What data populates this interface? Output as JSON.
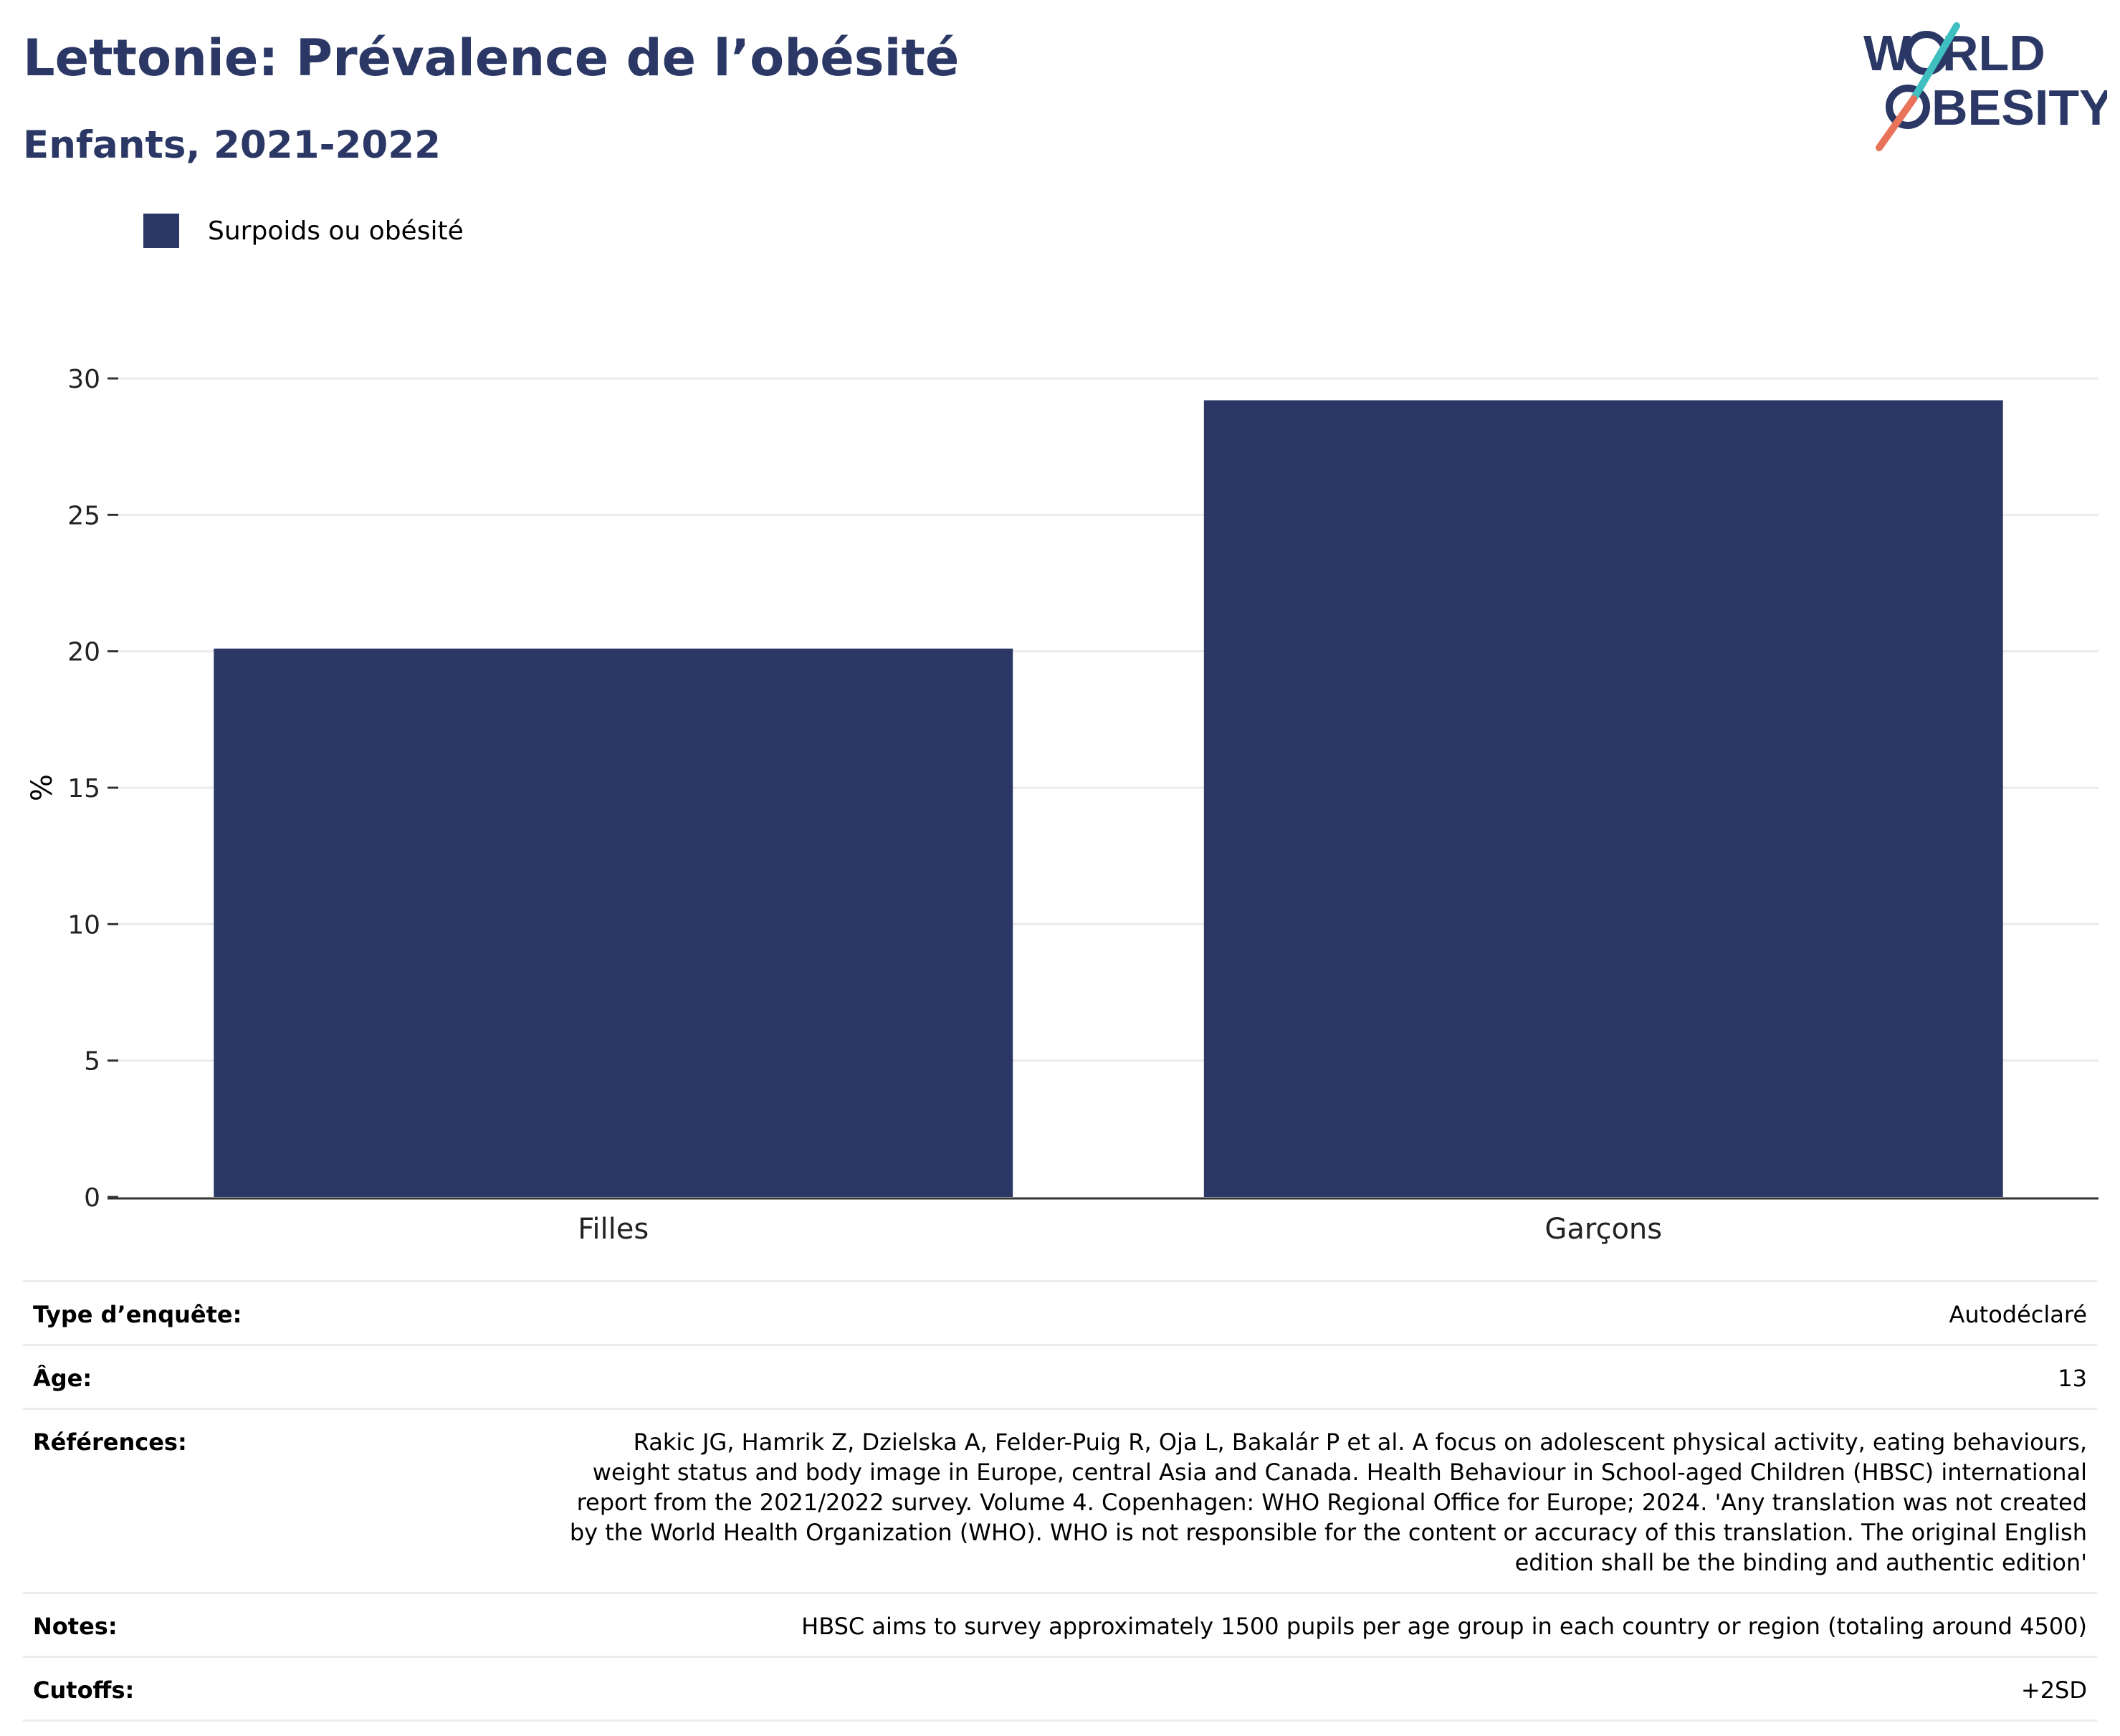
{
  "header": {
    "title": "Lettonie: Prévalence de l’obésité",
    "subtitle": "Enfants, 2021-2022"
  },
  "logo": {
    "line1": "W",
    "line1b": "RLD",
    "line2": "BESITY",
    "icon": "world-obesity-logo",
    "accent_teal": "#3fbfbf",
    "accent_coral": "#e8735a",
    "text_color": "#2b3764"
  },
  "legend": {
    "label": "Surpoids ou obésité",
    "color": "#2b3764"
  },
  "chart_data": {
    "type": "bar",
    "categories": [
      "Filles",
      "Garçons"
    ],
    "series": [
      {
        "name": "Surpoids ou obésité",
        "values": [
          20.1,
          29.2
        ],
        "color": "#2b3764"
      }
    ],
    "ylabel": "%",
    "ylim": [
      0,
      30
    ],
    "yticks": [
      0,
      5,
      10,
      15,
      20,
      25,
      30
    ],
    "grid": true,
    "legend_position": "top-left"
  },
  "meta": [
    {
      "label": "Type d’enquête:",
      "value": "Autodéclaré"
    },
    {
      "label": "Âge:",
      "value": "13"
    },
    {
      "label": "Références:",
      "value": "Rakic JG, Hamrik Z, Dzielska A, Felder-Puig R, Oja L, Bakalár P et al. A focus on adolescent physical activity, eating behaviours, weight status and body image in Europe, central Asia and Canada. Health Behaviour in School-aged Children (HBSC) international report from the 2021/2022 survey. Volume 4. Copenhagen: WHO Regional Office for Europe; 2024. 'Any translation was not created by the World Health Organization (WHO). WHO is not responsible for the content or accuracy of this translation. The original English edition shall be the binding and authentic edition'"
    },
    {
      "label": "Notes:",
      "value": "HBSC aims to survey approximately 1500 pupils per age group in each country or region (totaling around 4500)"
    },
    {
      "label": "Cutoffs:",
      "value": "+2SD"
    }
  ]
}
